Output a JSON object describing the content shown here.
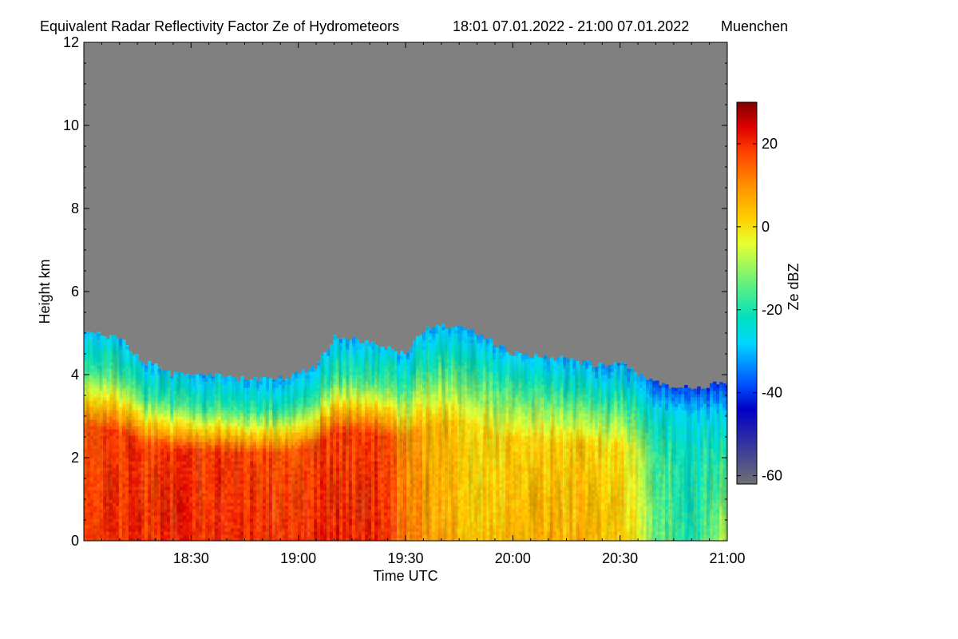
{
  "chart_data": {
    "type": "heatmap",
    "title": "Equivalent Radar Reflectivity Factor Ze of Hydrometeors",
    "time_range_label": "18:01 07.01.2022 - 21:00 07.01.2022",
    "location": "Muenchen",
    "xlabel": "Time UTC",
    "ylabel": "Height km",
    "xlim": [
      "18:01",
      "21:00"
    ],
    "ylim": [
      0,
      12
    ],
    "x_ticks": [
      "18:30",
      "19:00",
      "19:30",
      "20:00",
      "20:30",
      "21:00"
    ],
    "y_ticks": [
      0,
      2,
      4,
      6,
      8,
      10,
      12
    ],
    "colorbar": {
      "label": "Ze dBZ",
      "range": [
        -62,
        30
      ],
      "ticks": [
        -60,
        -40,
        -20,
        0,
        20
      ],
      "colors": [
        "#707070",
        "#0000c8",
        "#0050ff",
        "#00d8ff",
        "#00e0c0",
        "#60f080",
        "#e8ff30",
        "#ffd000",
        "#ff9000",
        "#ff4000",
        "#e00000",
        "#800000"
      ],
      "stops": [
        -62,
        -44,
        -38,
        -28,
        -22,
        -14,
        -4,
        2,
        10,
        18,
        24,
        30
      ],
      "missing_color": "#808080"
    },
    "cloud_top_km": {
      "times": [
        "18:01",
        "18:10",
        "18:15",
        "18:20",
        "18:25",
        "18:35",
        "18:45",
        "18:55",
        "19:05",
        "19:10",
        "19:20",
        "19:30",
        "19:35",
        "19:45",
        "19:50",
        "20:00",
        "20:10",
        "20:15",
        "20:25",
        "20:30",
        "20:35",
        "20:45",
        "20:50",
        "21:00"
      ],
      "heights": [
        5.0,
        4.9,
        4.4,
        4.2,
        4.0,
        4.0,
        3.9,
        3.9,
        4.2,
        4.9,
        4.8,
        4.5,
        5.1,
        5.2,
        5.0,
        4.5,
        4.4,
        4.4,
        4.2,
        4.3,
        4.0,
        3.7,
        3.7,
        3.8
      ]
    },
    "reflectivity_profile_dbz": {
      "times": [
        "18:01",
        "18:30",
        "19:00",
        "19:20",
        "19:35",
        "19:50",
        "20:05",
        "20:20",
        "20:30",
        "20:40",
        "20:50",
        "21:00"
      ],
      "near_surface": [
        19,
        20,
        20,
        21,
        9,
        3,
        5,
        6,
        3,
        -12,
        -20,
        -6
      ],
      "mid_level": [
        17,
        19,
        17,
        19,
        6,
        1,
        1,
        2,
        0,
        -16,
        -22,
        -18
      ],
      "cloud_top": [
        -28,
        -30,
        -30,
        -29,
        -30,
        -30,
        -30,
        -31,
        -32,
        -36,
        -38,
        -40
      ]
    }
  }
}
